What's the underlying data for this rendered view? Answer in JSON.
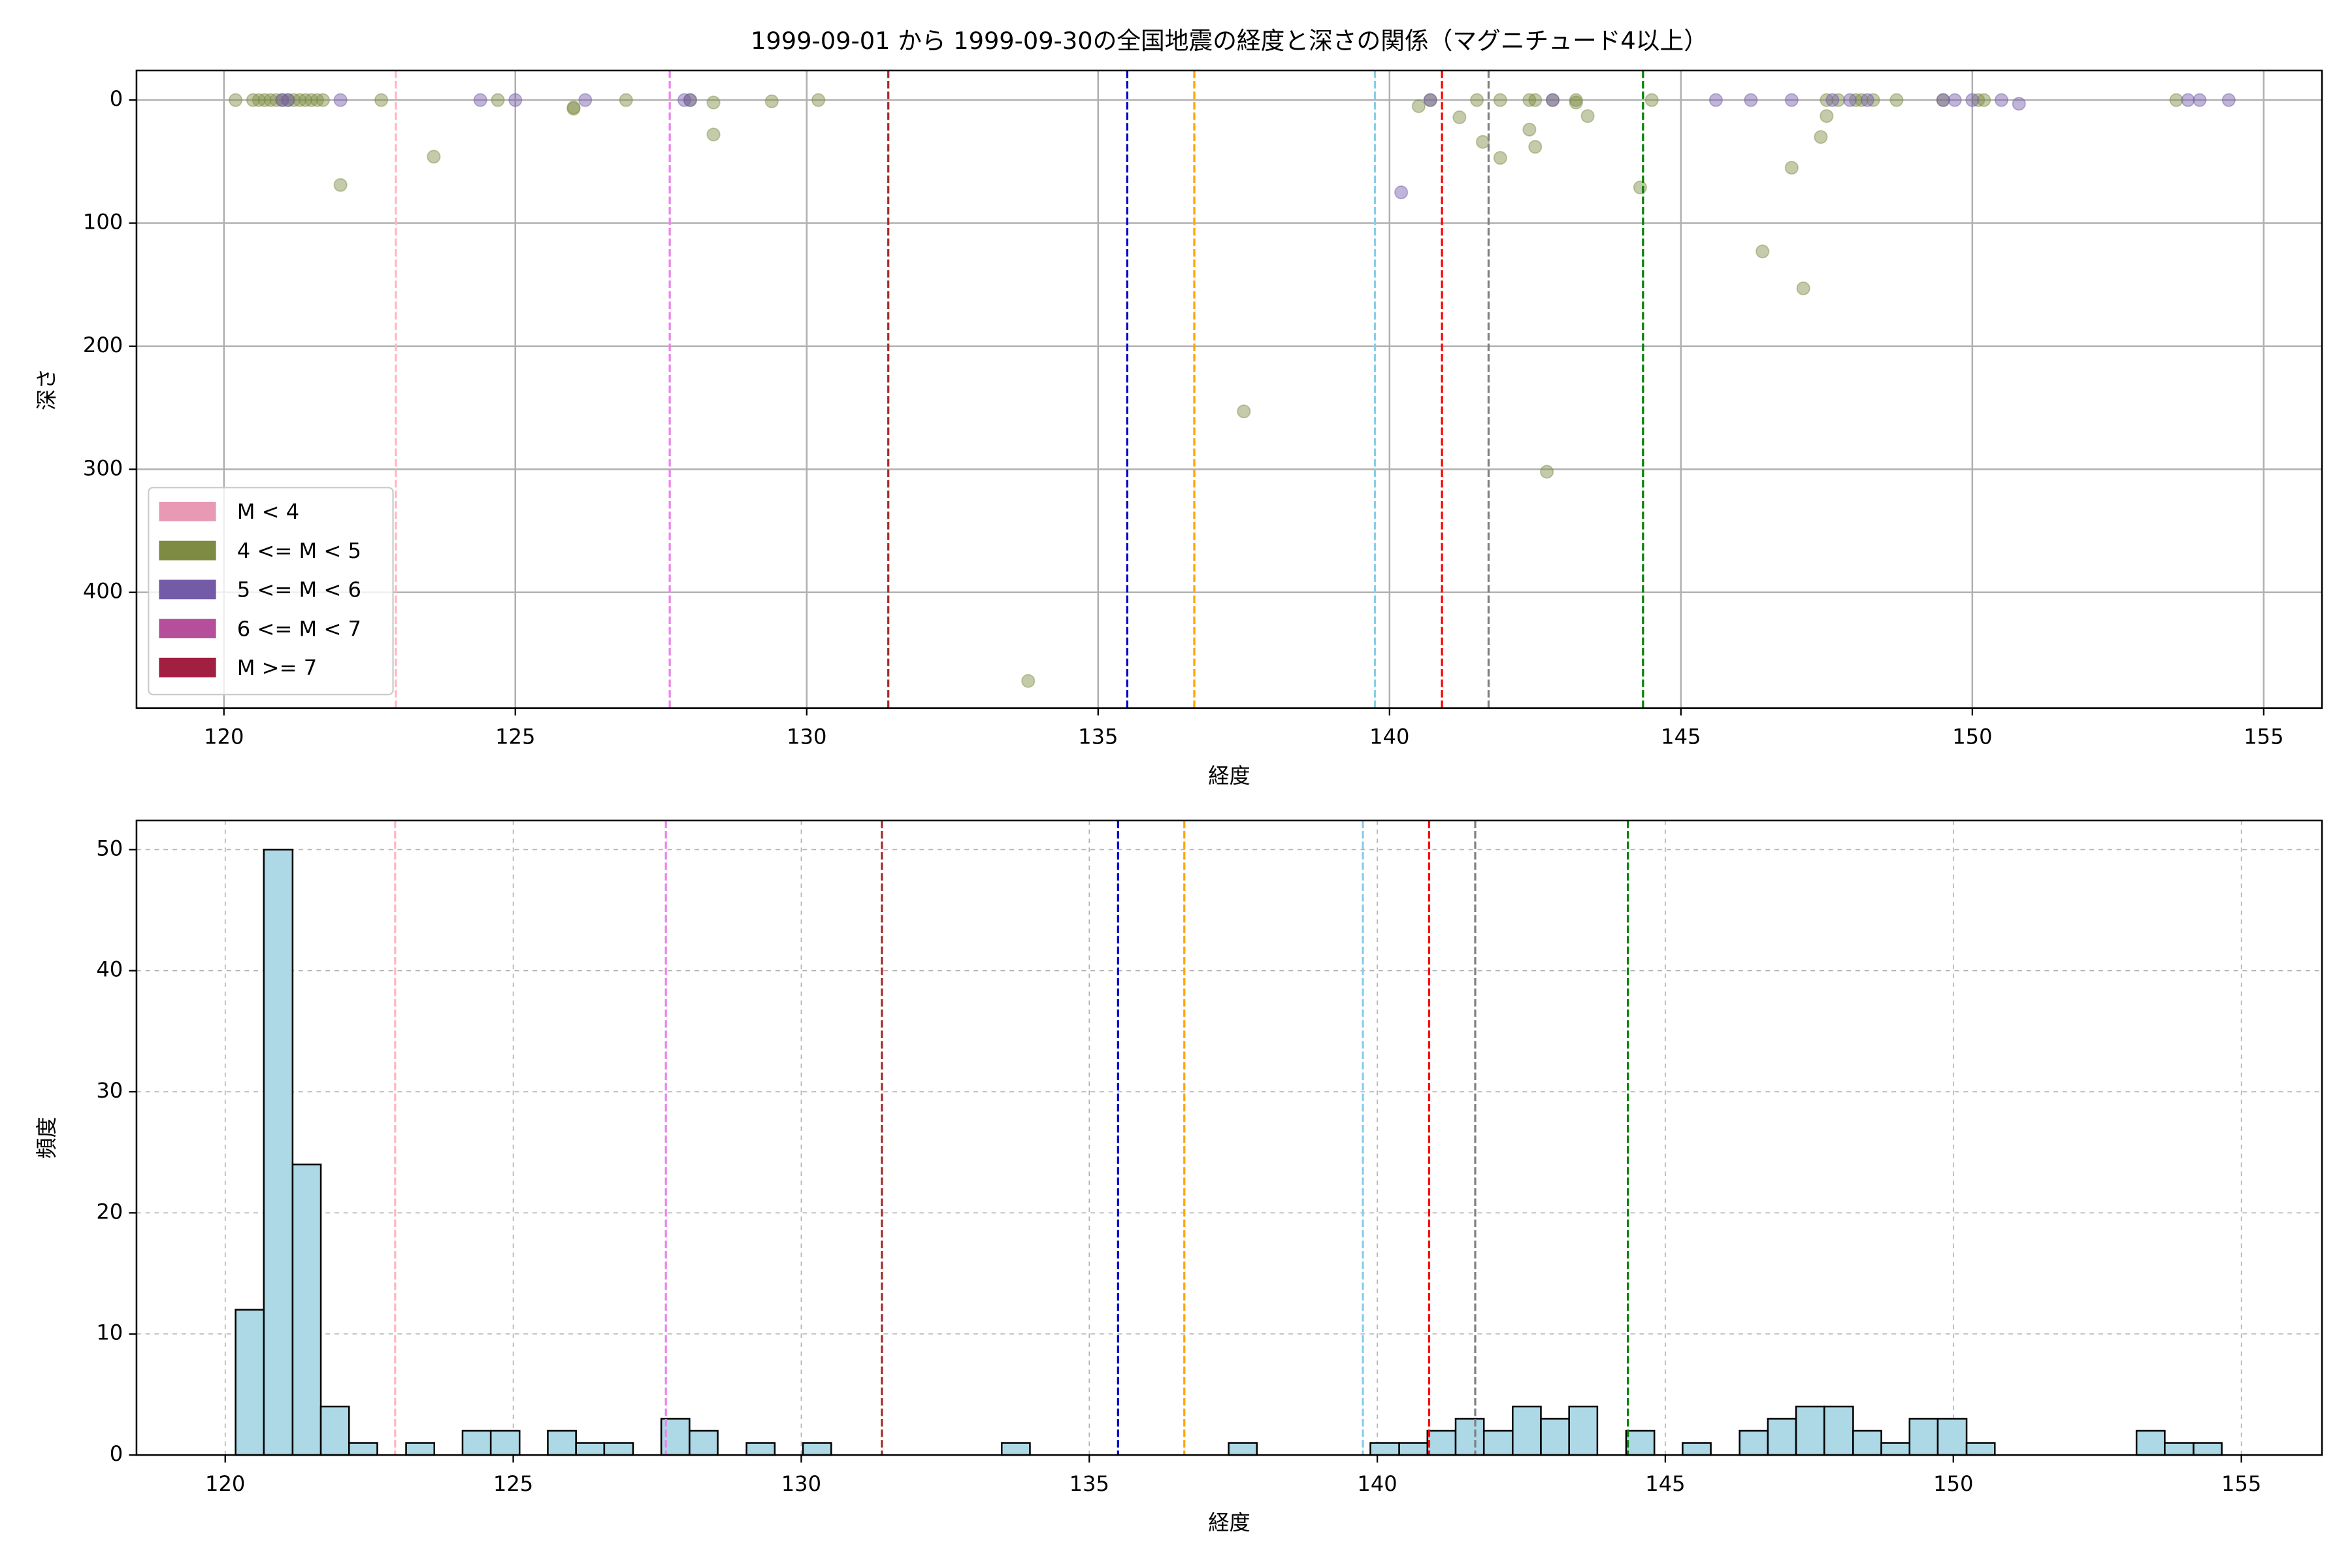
{
  "chart_data": [
    {
      "type": "scatter",
      "title": "1999-09-01 から 1999-09-30の全国地震の経度と深さの関係（マグニチュード4以上）",
      "xlabel": "経度",
      "ylabel": "深さ",
      "xlim": [
        118.5,
        156
      ],
      "ylim": [
        494,
        -24
      ],
      "xticks": [
        120,
        125,
        130,
        135,
        140,
        145,
        150,
        155
      ],
      "yticks": [
        0,
        100,
        200,
        300,
        400
      ],
      "grid": true,
      "grid_style": "solid",
      "legend": "lower left",
      "alpha": 0.45,
      "series": [
        {
          "name": "M < 4",
          "color": "#e89ab5",
          "x": [],
          "values": []
        },
        {
          "name": "4 <= M < 5",
          "color": "#7d8c42",
          "x": [
            120.2,
            120.5,
            120.6,
            120.7,
            120.8,
            120.9,
            121.0,
            121.1,
            121.2,
            121.3,
            121.4,
            121.5,
            121.6,
            121.7,
            122.0,
            122.7,
            123.6,
            124.7,
            126.0,
            126.0,
            126.9,
            128.0,
            128.4,
            128.4,
            129.4,
            130.2,
            133.8,
            137.5,
            140.5,
            140.7,
            141.2,
            141.5,
            141.6,
            141.9,
            141.9,
            142.4,
            142.4,
            142.5,
            142.5,
            142.7,
            142.8,
            143.2,
            143.2,
            143.4,
            144.3,
            144.5,
            146.4,
            146.9,
            147.1,
            147.4,
            147.5,
            147.5,
            147.7,
            148.0,
            148.1,
            148.3,
            148.7,
            149.5,
            150.1,
            150.2,
            153.5
          ],
          "values": [
            0,
            0,
            0,
            0,
            0,
            0,
            0,
            0,
            0,
            0,
            0,
            0,
            0,
            0,
            69,
            0,
            46,
            0,
            6,
            7,
            0,
            0,
            2,
            28,
            1,
            0,
            472,
            253,
            5,
            0,
            14,
            0,
            34,
            47,
            0,
            0,
            24,
            38,
            0,
            302,
            0,
            0,
            2,
            13,
            71,
            0,
            123,
            55,
            153,
            30,
            13,
            0,
            0,
            0,
            0,
            0,
            0,
            0,
            0,
            0,
            0
          ]
        },
        {
          "name": "5 <= M < 6",
          "color": "#735ba8",
          "x": [
            121.0,
            121.1,
            122.0,
            124.4,
            125.0,
            126.2,
            127.9,
            128.0,
            140.2,
            140.7,
            142.8,
            145.6,
            146.2,
            146.9,
            147.6,
            147.9,
            148.2,
            149.5,
            149.7,
            150.0,
            150.5,
            150.8,
            153.7,
            153.9,
            154.4
          ],
          "values": [
            0,
            0,
            0,
            0,
            0,
            0,
            0,
            0,
            75,
            0,
            0,
            0,
            0,
            0,
            0,
            0,
            0,
            0,
            0,
            0,
            0,
            3,
            0,
            0,
            0
          ]
        },
        {
          "name": "6 <= M < 7",
          "color": "#b54e9b",
          "x": [],
          "values": []
        },
        {
          "name": "M >= 7",
          "color": "#a11f40",
          "x": [],
          "values": []
        }
      ],
      "vlines": [
        {
          "x": 122.95,
          "color": "#ffb6c1"
        },
        {
          "x": 127.65,
          "color": "#ee82ee"
        },
        {
          "x": 131.4,
          "color": "#a52a2a"
        },
        {
          "x": 135.5,
          "color": "#0000cd"
        },
        {
          "x": 136.65,
          "color": "#ffa500"
        },
        {
          "x": 139.75,
          "color": "#87ceeb"
        },
        {
          "x": 140.9,
          "color": "#ff0000"
        },
        {
          "x": 141.7,
          "color": "#808080"
        },
        {
          "x": 144.35,
          "color": "#008000"
        }
      ]
    },
    {
      "type": "histogram",
      "xlabel": "経度",
      "ylabel": "頻度",
      "xlim": [
        118.46,
        156.4
      ],
      "ylim": [
        0,
        52.4
      ],
      "xticks": [
        120,
        125,
        130,
        135,
        140,
        145,
        150,
        155
      ],
      "yticks": [
        0,
        10,
        20,
        30,
        40,
        50
      ],
      "grid": true,
      "grid_style": "dashed",
      "color": "#add8e6",
      "bins": [
        120.18,
        120.67,
        121.17,
        121.66,
        122.15,
        122.64,
        123.14,
        123.63,
        124.12,
        124.61,
        125.11,
        125.6,
        126.09,
        126.58,
        127.08,
        127.57,
        128.06,
        128.55,
        129.05,
        129.54,
        130.03,
        130.52,
        131.02,
        131.51,
        132.0,
        132.5,
        132.99,
        133.48,
        133.97,
        134.47,
        134.96,
        135.45,
        135.94,
        136.44,
        136.93,
        137.42,
        137.91,
        138.41,
        138.9,
        139.39,
        139.88,
        140.38,
        140.87,
        141.36,
        141.85,
        142.35,
        142.84,
        143.33,
        143.82,
        144.32,
        144.81,
        145.3,
        145.79,
        146.29,
        146.78,
        147.27,
        147.76,
        148.26,
        148.75,
        149.24,
        149.73,
        150.23,
        150.72,
        151.21,
        151.7,
        152.2,
        152.69,
        153.18,
        153.67,
        154.17,
        154.66
      ],
      "values": [
        12,
        50,
        24,
        4,
        1,
        0,
        1,
        0,
        2,
        2,
        0,
        2,
        1,
        1,
        0,
        3,
        2,
        0,
        1,
        0,
        1,
        0,
        0,
        0,
        0,
        0,
        0,
        1,
        0,
        0,
        0,
        0,
        0,
        0,
        0,
        1,
        0,
        0,
        0,
        0,
        1,
        1,
        2,
        3,
        2,
        4,
        3,
        4,
        0,
        2,
        0,
        1,
        0,
        2,
        3,
        4,
        4,
        2,
        1,
        3,
        3,
        1,
        0,
        0,
        0,
        0,
        0,
        2,
        1,
        1
      ],
      "vlines": [
        {
          "x": 122.95,
          "color": "#ffb6c1"
        },
        {
          "x": 127.65,
          "color": "#ee82ee"
        },
        {
          "x": 131.4,
          "color": "#a52a2a"
        },
        {
          "x": 135.5,
          "color": "#0000cd"
        },
        {
          "x": 136.65,
          "color": "#ffa500"
        },
        {
          "x": 139.75,
          "color": "#87ceeb"
        },
        {
          "x": 140.9,
          "color": "#ff0000"
        },
        {
          "x": 141.7,
          "color": "#808080"
        },
        {
          "x": 144.35,
          "color": "#008000"
        }
      ]
    }
  ]
}
